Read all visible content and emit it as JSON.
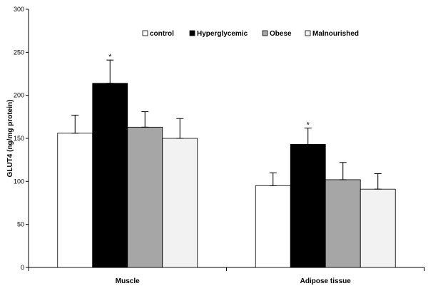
{
  "chart_data": {
    "type": "bar",
    "title": "",
    "xlabel": "",
    "ylabel": "GLUT4 (ng/mg protein)",
    "ylim": [
      0,
      300
    ],
    "yticks": [
      "0",
      "50",
      "100",
      "150",
      "200",
      "250",
      "300"
    ],
    "categories": [
      "Muscle",
      "Adipose tissue"
    ],
    "legend_position": "top-right",
    "grid": false,
    "series": [
      {
        "name": "control",
        "color": "#ffffff",
        "values": [
          156,
          95
        ],
        "errors": [
          21,
          15
        ],
        "significance": [
          "",
          ""
        ]
      },
      {
        "name": "Hyperglycemic",
        "color": "#000000",
        "values": [
          214,
          143
        ],
        "errors": [
          27,
          19
        ],
        "significance": [
          "*",
          "*"
        ]
      },
      {
        "name": "Obese",
        "color": "#a6a6a6",
        "values": [
          163,
          102
        ],
        "errors": [
          18,
          20
        ],
        "significance": [
          "",
          ""
        ]
      },
      {
        "name": "Malnourished",
        "color": "#f2f2f2",
        "values": [
          150,
          91
        ],
        "errors": [
          23,
          18
        ],
        "significance": [
          "",
          ""
        ]
      }
    ]
  }
}
